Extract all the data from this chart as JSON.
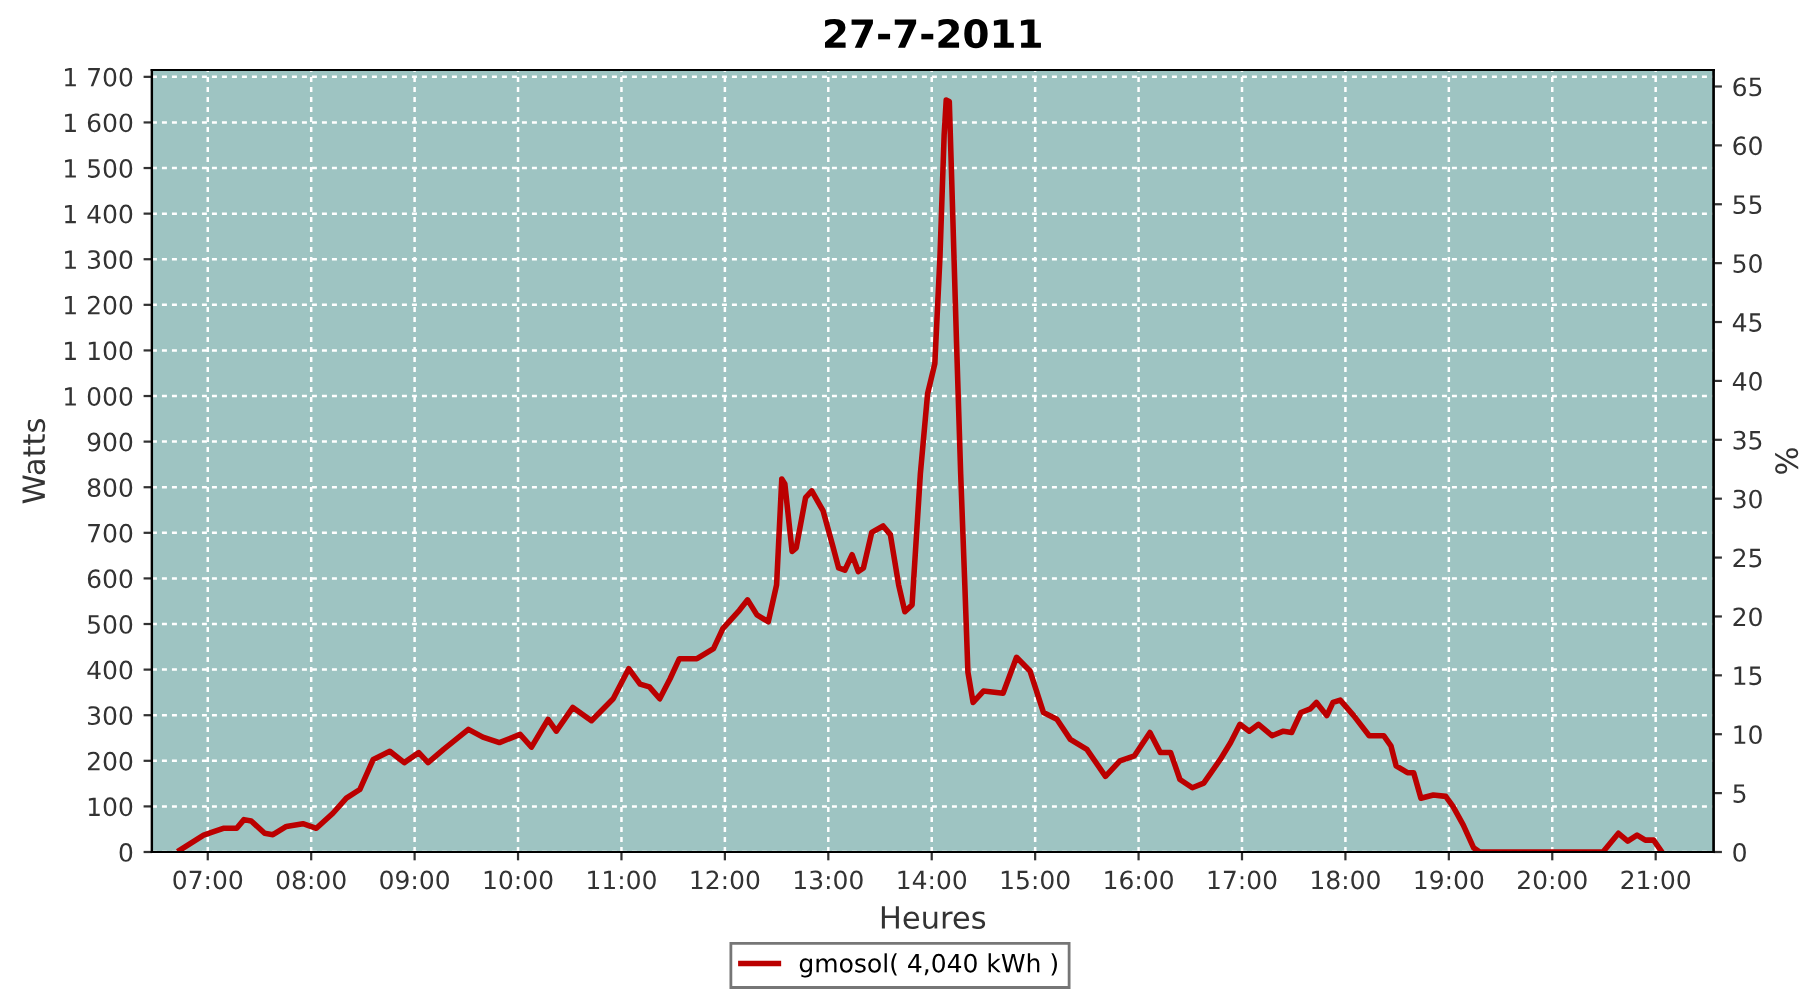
{
  "chart_data": {
    "type": "line",
    "title": "27-7-2011",
    "xlabel": "Heures",
    "ylabel": "Watts",
    "y2label": "%",
    "series": [
      {
        "name": "gmosol( 4,040 kWh )",
        "color": "#bb0000",
        "x": [
          6.73,
          6.96,
          7.05,
          7.15,
          7.28,
          7.35,
          7.42,
          7.55,
          7.63,
          7.76,
          7.92,
          8.05,
          8.21,
          8.34,
          8.47,
          8.6,
          8.76,
          8.9,
          9.04,
          9.13,
          9.28,
          9.52,
          9.66,
          9.82,
          10.02,
          10.13,
          10.29,
          10.37,
          10.53,
          10.71,
          10.92,
          11.07,
          11.18,
          11.27,
          11.37,
          11.47,
          11.56,
          11.73,
          11.89,
          11.98,
          12.14,
          12.22,
          12.31,
          12.42,
          12.5,
          12.55,
          12.58,
          12.65,
          12.69,
          12.78,
          12.84,
          12.95,
          13.04,
          13.1,
          13.16,
          13.23,
          13.29,
          13.34,
          13.42,
          13.53,
          13.6,
          13.68,
          13.74,
          13.81,
          13.89,
          13.96,
          14.03,
          14.08,
          14.12,
          14.14,
          14.17,
          14.19,
          14.24,
          14.28,
          14.32,
          14.35,
          14.4,
          14.5,
          14.69,
          14.82,
          14.95,
          15.08,
          15.21,
          15.34,
          15.5,
          15.68,
          15.82,
          15.96,
          16.11,
          16.21,
          16.31,
          16.4,
          16.52,
          16.63,
          16.79,
          16.89,
          16.98,
          17.07,
          17.16,
          17.29,
          17.4,
          17.48,
          17.57,
          17.66,
          17.72,
          17.82,
          17.88,
          17.95,
          18.08,
          18.23,
          18.37,
          18.44,
          18.49,
          18.6,
          18.66,
          18.73,
          18.85,
          18.97,
          19.04,
          19.14,
          19.24,
          19.3,
          20.49,
          20.64,
          20.73,
          20.82,
          20.9,
          20.98,
          21.06
        ],
        "values": [
          4,
          37,
          44,
          52,
          52,
          71,
          68,
          41,
          38,
          56,
          62,
          52,
          85,
          118,
          137,
          203,
          221,
          196,
          218,
          196,
          225,
          269,
          252,
          240,
          258,
          230,
          291,
          265,
          317,
          288,
          336,
          402,
          368,
          362,
          336,
          380,
          424,
          424,
          446,
          490,
          530,
          553,
          520,
          505,
          586,
          818,
          807,
          659,
          667,
          777,
          792,
          748,
          674,
          623,
          618,
          652,
          615,
          623,
          701,
          715,
          696,
          586,
          527,
          542,
          829,
          1005,
          1071,
          1307,
          1572,
          1649,
          1646,
          1498,
          1116,
          829,
          586,
          394,
          328,
          353,
          348,
          427,
          397,
          306,
          291,
          247,
          225,
          166,
          200,
          211,
          262,
          218,
          218,
          159,
          141,
          151,
          203,
          240,
          280,
          265,
          280,
          255,
          265,
          262,
          306,
          314,
          328,
          299,
          328,
          333,
          299,
          255,
          255,
          233,
          189,
          174,
          174,
          118,
          125,
          122,
          100,
          59,
          9,
          0,
          0,
          41,
          24,
          37,
          26,
          26,
          0
        ]
      }
    ],
    "xlim": [
      6.46,
      21.56
    ],
    "xticks": [
      {
        "value": 7,
        "label": "07:00"
      },
      {
        "value": 8,
        "label": "08:00"
      },
      {
        "value": 9,
        "label": "09:00"
      },
      {
        "value": 10,
        "label": "10:00"
      },
      {
        "value": 11,
        "label": "11:00"
      },
      {
        "value": 12,
        "label": "12:00"
      },
      {
        "value": 13,
        "label": "13:00"
      },
      {
        "value": 14,
        "label": "14:00"
      },
      {
        "value": 15,
        "label": "15:00"
      },
      {
        "value": 16,
        "label": "16:00"
      },
      {
        "value": 17,
        "label": "17:00"
      },
      {
        "value": 18,
        "label": "18:00"
      },
      {
        "value": 19,
        "label": "19:00"
      },
      {
        "value": 20,
        "label": "20:00"
      },
      {
        "value": 21,
        "label": "21:00"
      }
    ],
    "ylim": [
      0,
      1715
    ],
    "yticks": [
      0,
      100,
      200,
      300,
      400,
      500,
      600,
      700,
      800,
      900,
      {
        "value": 1000,
        "label": "1 000"
      },
      {
        "value": 1100,
        "label": "1 100"
      },
      {
        "value": 1200,
        "label": "1 200"
      },
      {
        "value": 1300,
        "label": "1 300"
      },
      {
        "value": 1400,
        "label": "1 400"
      },
      {
        "value": 1500,
        "label": "1 500"
      },
      {
        "value": 1600,
        "label": "1 600"
      },
      {
        "value": 1700,
        "label": "1 700"
      }
    ],
    "y2lim": [
      0,
      66.4
    ],
    "y2ticks": [
      0,
      5,
      10,
      15,
      20,
      25,
      30,
      35,
      40,
      45,
      50,
      55,
      60,
      65
    ],
    "grid": true,
    "legend": "bottom",
    "marker": "none",
    "line_style": "solid"
  }
}
